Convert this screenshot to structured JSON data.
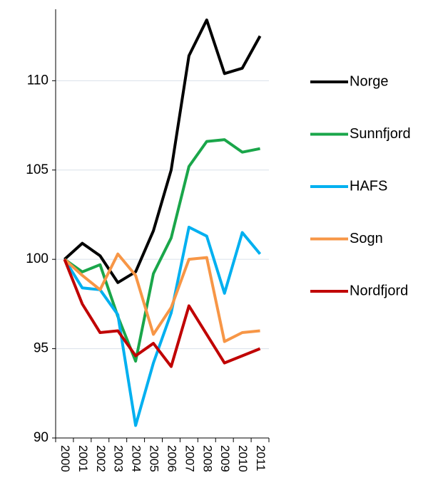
{
  "chart_data": {
    "type": "line",
    "categories": [
      "2000",
      "2001",
      "2002",
      "2003",
      "2004",
      "2005",
      "2006",
      "2007",
      "2008",
      "2009",
      "2010",
      "2011"
    ],
    "series": [
      {
        "name": "Norge",
        "color": "#000000",
        "values": [
          100,
          100.9,
          100.2,
          98.7,
          99.3,
          101.6,
          105.0,
          111.4,
          113.4,
          110.4,
          110.7,
          112.5
        ]
      },
      {
        "name": "Sunnfjord",
        "color": "#1aa64a",
        "values": [
          100,
          99.3,
          99.7,
          96.8,
          94.3,
          99.2,
          101.2,
          105.2,
          106.6,
          106.7,
          106.0,
          106.2
        ]
      },
      {
        "name": "HAFS",
        "color": "#00b0f0",
        "values": [
          100,
          98.4,
          98.3,
          96.9,
          90.7,
          94.2,
          97.0,
          101.8,
          101.3,
          98.1,
          101.5,
          100.3
        ]
      },
      {
        "name": "Sogn",
        "color": "#f79646",
        "values": [
          100,
          99.1,
          98.3,
          100.3,
          99.1,
          95.8,
          97.3,
          100.0,
          100.1,
          95.4,
          95.9,
          96.0
        ]
      },
      {
        "name": "Nordfjord",
        "color": "#c00000",
        "values": [
          100,
          97.5,
          95.9,
          96.0,
          94.6,
          95.3,
          94.0,
          97.4,
          95.8,
          94.2,
          94.6,
          95.0
        ]
      }
    ],
    "ylim": [
      90,
      114
    ],
    "yticks": [
      90,
      95,
      100,
      105,
      110
    ],
    "grid": true,
    "legend": "right"
  }
}
